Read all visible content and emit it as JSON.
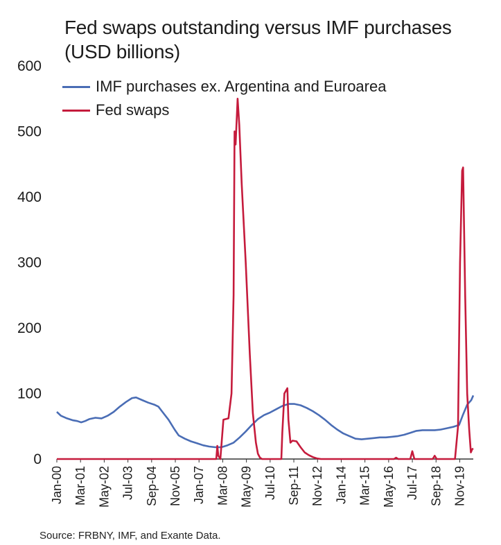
{
  "chart_data": {
    "type": "line",
    "title": "Fed swaps outstanding versus IMF purchases",
    "subtitle": "(USD billions)",
    "ylim": [
      0,
      600
    ],
    "yticks": [
      "0",
      "100",
      "200",
      "300",
      "400",
      "500",
      "600"
    ],
    "xticks": [
      "Jan-00",
      "Mar-01",
      "May-02",
      "Jul-03",
      "Sep-04",
      "Nov-05",
      "Jan-07",
      "Mar-08",
      "May-09",
      "Jul-10",
      "Sep-11",
      "Nov-12",
      "Jan-14",
      "Mar-15",
      "May-16",
      "Jul-17",
      "Sep-18",
      "Nov-19"
    ],
    "x_range": [
      2000.0,
      2020.5
    ],
    "legend_position": "top-left",
    "grid": false,
    "series": [
      {
        "name": "IMF purchases ex. Argentina and Euroarea",
        "color": "#4a6db5",
        "points": [
          [
            2000.0,
            72
          ],
          [
            2000.2,
            66
          ],
          [
            2000.5,
            62
          ],
          [
            2000.8,
            59
          ],
          [
            2001.0,
            58
          ],
          [
            2001.2,
            56
          ],
          [
            2001.4,
            58
          ],
          [
            2001.6,
            61
          ],
          [
            2001.9,
            63
          ],
          [
            2002.2,
            62
          ],
          [
            2002.5,
            66
          ],
          [
            2002.8,
            72
          ],
          [
            2003.1,
            80
          ],
          [
            2003.4,
            87
          ],
          [
            2003.7,
            93
          ],
          [
            2003.9,
            94
          ],
          [
            2004.2,
            90
          ],
          [
            2004.5,
            86
          ],
          [
            2004.8,
            83
          ],
          [
            2005.0,
            80
          ],
          [
            2005.2,
            72
          ],
          [
            2005.5,
            60
          ],
          [
            2005.8,
            45
          ],
          [
            2006.0,
            36
          ],
          [
            2006.3,
            31
          ],
          [
            2006.6,
            27
          ],
          [
            2006.9,
            24
          ],
          [
            2007.2,
            21
          ],
          [
            2007.5,
            19
          ],
          [
            2007.8,
            18
          ],
          [
            2008.1,
            18
          ],
          [
            2008.4,
            21
          ],
          [
            2008.7,
            25
          ],
          [
            2009.0,
            33
          ],
          [
            2009.3,
            42
          ],
          [
            2009.6,
            52
          ],
          [
            2009.9,
            61
          ],
          [
            2010.2,
            67
          ],
          [
            2010.5,
            71
          ],
          [
            2010.8,
            76
          ],
          [
            2011.1,
            81
          ],
          [
            2011.4,
            84
          ],
          [
            2011.7,
            84
          ],
          [
            2012.0,
            82
          ],
          [
            2012.3,
            78
          ],
          [
            2012.6,
            73
          ],
          [
            2012.9,
            67
          ],
          [
            2013.2,
            60
          ],
          [
            2013.5,
            52
          ],
          [
            2013.8,
            45
          ],
          [
            2014.1,
            39
          ],
          [
            2014.4,
            35
          ],
          [
            2014.7,
            31
          ],
          [
            2015.0,
            30
          ],
          [
            2015.3,
            31
          ],
          [
            2015.6,
            32
          ],
          [
            2015.9,
            33
          ],
          [
            2016.2,
            33
          ],
          [
            2016.5,
            34
          ],
          [
            2016.8,
            35
          ],
          [
            2017.1,
            37
          ],
          [
            2017.4,
            40
          ],
          [
            2017.7,
            43
          ],
          [
            2018.0,
            44
          ],
          [
            2018.3,
            44
          ],
          [
            2018.6,
            44
          ],
          [
            2018.9,
            45
          ],
          [
            2019.2,
            47
          ],
          [
            2019.5,
            49
          ],
          [
            2019.8,
            52
          ],
          [
            2020.0,
            68
          ],
          [
            2020.2,
            83
          ],
          [
            2020.4,
            90
          ],
          [
            2020.5,
            97
          ]
        ]
      },
      {
        "name": "Fed swaps",
        "color": "#c51b3c",
        "points": [
          [
            2000.0,
            0
          ],
          [
            2007.85,
            0
          ],
          [
            2007.9,
            20
          ],
          [
            2007.95,
            5
          ],
          [
            2008.05,
            0
          ],
          [
            2008.2,
            60
          ],
          [
            2008.45,
            62
          ],
          [
            2008.6,
            100
          ],
          [
            2008.7,
            250
          ],
          [
            2008.75,
            500
          ],
          [
            2008.8,
            480
          ],
          [
            2008.9,
            550
          ],
          [
            2008.98,
            510
          ],
          [
            2009.1,
            420
          ],
          [
            2009.3,
            300
          ],
          [
            2009.5,
            160
          ],
          [
            2009.65,
            70
          ],
          [
            2009.8,
            25
          ],
          [
            2009.9,
            8
          ],
          [
            2010.0,
            2
          ],
          [
            2010.1,
            0
          ],
          [
            2011.05,
            0
          ],
          [
            2011.1,
            40
          ],
          [
            2011.2,
            100
          ],
          [
            2011.35,
            108
          ],
          [
            2011.4,
            60
          ],
          [
            2011.5,
            25
          ],
          [
            2011.6,
            28
          ],
          [
            2011.8,
            27
          ],
          [
            2012.0,
            18
          ],
          [
            2012.2,
            10
          ],
          [
            2012.4,
            6
          ],
          [
            2012.6,
            3
          ],
          [
            2012.8,
            1
          ],
          [
            2013.0,
            0
          ],
          [
            2015.5,
            0
          ],
          [
            2016.6,
            0
          ],
          [
            2016.7,
            2
          ],
          [
            2016.8,
            0
          ],
          [
            2017.4,
            0
          ],
          [
            2017.5,
            12
          ],
          [
            2017.6,
            0
          ],
          [
            2018.5,
            0
          ],
          [
            2018.6,
            5
          ],
          [
            2018.7,
            0
          ],
          [
            2019.6,
            0
          ],
          [
            2019.75,
            50
          ],
          [
            2019.85,
            300
          ],
          [
            2019.95,
            440
          ],
          [
            2020.0,
            445
          ],
          [
            2020.1,
            250
          ],
          [
            2020.2,
            100
          ],
          [
            2020.3,
            45
          ],
          [
            2020.38,
            10
          ],
          [
            2020.45,
            15
          ],
          [
            2020.5,
            16
          ]
        ]
      }
    ]
  },
  "source": "Source: FRBNY, IMF, and Exante Data."
}
